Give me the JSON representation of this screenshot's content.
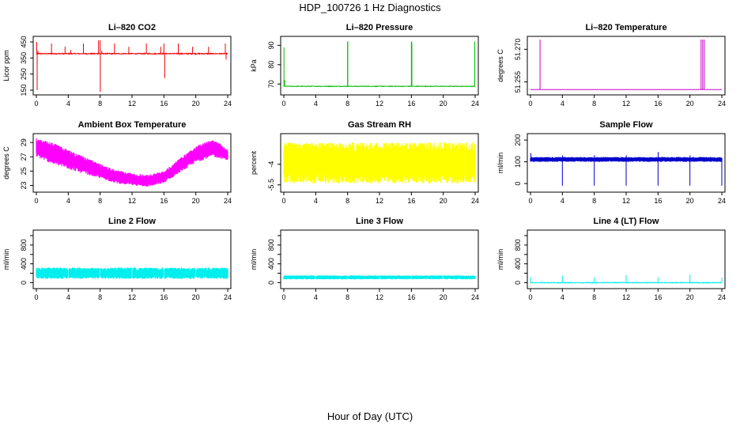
{
  "page": {
    "title": "HDP_100726  1 Hz Diagnostics",
    "xlabel": "Hour of Day (UTC)"
  },
  "chart_data": [
    {
      "type": "line",
      "title": "Li–820 CO2",
      "ylabel": "Licor ppm",
      "color": "#ee0000",
      "xlim": [
        0,
        24
      ],
      "ylim": [
        140,
        465
      ],
      "yticks": [
        150,
        250,
        350,
        450
      ],
      "baseline": 377,
      "noise": 3,
      "spikes": [
        [
          0.05,
          450
        ],
        [
          0.1,
          150
        ],
        [
          0.2,
          395
        ],
        [
          1.9,
          440
        ],
        [
          3.6,
          420
        ],
        [
          4.3,
          400
        ],
        [
          5.9,
          440
        ],
        [
          7.8,
          460
        ],
        [
          8.0,
          460
        ],
        [
          8.02,
          140
        ],
        [
          8.2,
          395
        ],
        [
          9.8,
          440
        ],
        [
          11.6,
          420
        ],
        [
          13.8,
          440
        ],
        [
          15.6,
          420
        ],
        [
          16.0,
          440
        ],
        [
          16.1,
          225
        ],
        [
          17.8,
          440
        ],
        [
          19.6,
          420
        ],
        [
          21.6,
          420
        ],
        [
          23.7,
          440
        ],
        [
          23.8,
          340
        ]
      ]
    },
    {
      "type": "line",
      "title": "Li–820 Pressure",
      "ylabel": "kPa",
      "color": "#00bb00",
      "xlim": [
        0,
        24
      ],
      "ylim": [
        66,
        93
      ],
      "yticks": [
        70,
        80,
        90
      ],
      "baseline": 68.8,
      "noise": 0.15,
      "spikes": [
        [
          0.02,
          89
        ],
        [
          0.1,
          72
        ],
        [
          8.0,
          92
        ],
        [
          8.02,
          92
        ],
        [
          16.0,
          92
        ],
        [
          16.03,
          92
        ],
        [
          16.06,
          91
        ],
        [
          23.95,
          92
        ]
      ]
    },
    {
      "type": "line",
      "title": "Li–820 Temperature",
      "ylabel": "degrees C",
      "color": "#cc00cc",
      "xlim": [
        0,
        24
      ],
      "ylim": [
        51.2505,
        51.2745
      ],
      "yticks": [
        51.255,
        51.27
      ],
      "ytick_labels": [
        "51.255",
        "51.270"
      ],
      "baseline": 51.2515,
      "noise": 0,
      "spikes": [
        [
          1.2,
          51.2745
        ],
        [
          21.4,
          51.2745
        ],
        [
          21.6,
          51.2745
        ],
        [
          21.8,
          51.2745
        ]
      ]
    },
    {
      "type": "band",
      "title": "Ambient Box Temperature",
      "ylabel": "degrees C",
      "color": "#ff00ff",
      "xlim": [
        0,
        24
      ],
      "ylim": [
        22.5,
        29.8
      ],
      "yticks": [
        23,
        25,
        27,
        29
      ],
      "upper": [
        [
          0,
          29.6
        ],
        [
          2,
          29.0
        ],
        [
          4,
          28.0
        ],
        [
          6,
          27.0
        ],
        [
          8,
          26.0
        ],
        [
          10,
          25.2
        ],
        [
          12,
          24.7
        ],
        [
          14,
          24.5
        ],
        [
          16,
          25.0
        ],
        [
          18,
          26.8
        ],
        [
          20,
          28.5
        ],
        [
          22,
          29.4
        ],
        [
          23,
          29.0
        ],
        [
          24,
          28.0
        ]
      ],
      "lower": [
        [
          0,
          27.0
        ],
        [
          2,
          26.0
        ],
        [
          4,
          25.3
        ],
        [
          6,
          24.6
        ],
        [
          8,
          24.0
        ],
        [
          10,
          23.3
        ],
        [
          12,
          23.0
        ],
        [
          14,
          22.8
        ],
        [
          16,
          23.3
        ],
        [
          18,
          24.8
        ],
        [
          20,
          26.2
        ],
        [
          22,
          27.0
        ],
        [
          23,
          26.8
        ],
        [
          24,
          26.5
        ]
      ]
    },
    {
      "type": "band",
      "title": "Gas Stream RH",
      "ylabel": "percent",
      "color": "#ffff00",
      "xlim": [
        0,
        24
      ],
      "ylim": [
        -5.8,
        -2.0
      ],
      "yticks": [
        -5.5,
        -4.0
      ],
      "upper": [
        [
          0,
          -2.4
        ],
        [
          24,
          -2.4
        ]
      ],
      "lower": [
        [
          0,
          -5.4
        ],
        [
          24,
          -5.4
        ]
      ]
    },
    {
      "type": "band",
      "title": "Sample Flow",
      "ylabel": "ml/min",
      "color": "#0000cc",
      "xlim": [
        0,
        24
      ],
      "ylim": [
        -25,
        215
      ],
      "yticks": [
        0,
        100,
        200
      ],
      "upper": [
        [
          0,
          122
        ],
        [
          24,
          122
        ]
      ],
      "lower": [
        [
          0,
          100
        ],
        [
          24,
          100
        ]
      ],
      "spikes": [
        [
          0.05,
          140
        ],
        [
          4.0,
          -10
        ],
        [
          4.02,
          130
        ],
        [
          8.0,
          -10
        ],
        [
          8.02,
          130
        ],
        [
          12.0,
          -10
        ],
        [
          12.02,
          130
        ],
        [
          16.0,
          -10
        ],
        [
          16.02,
          145
        ],
        [
          20.0,
          -10
        ],
        [
          20.02,
          130
        ],
        [
          24.0,
          -10
        ]
      ]
    },
    {
      "type": "band",
      "title": "Line 2 Flow",
      "ylabel": "ml/min",
      "color": "#00eeee",
      "xlim": [
        0,
        24
      ],
      "ylim": [
        -60,
        1050
      ],
      "yticks": [
        0,
        400,
        800
      ],
      "yminor": [
        200,
        600,
        1000
      ],
      "upper": [
        [
          0,
          320
        ],
        [
          24,
          320
        ]
      ],
      "lower": [
        [
          0,
          80
        ],
        [
          24,
          80
        ]
      ],
      "gaps": [
        4,
        8,
        12,
        16,
        20
      ]
    },
    {
      "type": "band",
      "title": "Line 3 Flow",
      "ylabel": "ml/min",
      "color": "#00eeee",
      "xlim": [
        0,
        24
      ],
      "ylim": [
        -60,
        1050
      ],
      "yticks": [
        0,
        400,
        800
      ],
      "yminor": [
        200,
        600,
        1000
      ],
      "upper": [
        [
          0,
          155
        ],
        [
          24,
          155
        ]
      ],
      "lower": [
        [
          0,
          70
        ],
        [
          24,
          70
        ]
      ],
      "gaps": [
        4,
        8,
        12,
        16,
        20
      ]
    },
    {
      "type": "line",
      "title": "Line 4 (LT) Flow",
      "ylabel": "ml/min",
      "color": "#00eeee",
      "xlim": [
        0,
        24
      ],
      "ylim": [
        -60,
        1050
      ],
      "yticks": [
        0,
        400,
        800
      ],
      "yminor": [
        200,
        600,
        1000
      ],
      "baseline": 0,
      "noise": 8,
      "spikes": [
        [
          0,
          120
        ],
        [
          4,
          150
        ],
        [
          8,
          110
        ],
        [
          12,
          160
        ],
        [
          16,
          110
        ],
        [
          20,
          170
        ],
        [
          24,
          110
        ]
      ]
    }
  ],
  "shared_x": {
    "ticks": [
      0,
      4,
      8,
      12,
      16,
      20,
      24
    ]
  }
}
